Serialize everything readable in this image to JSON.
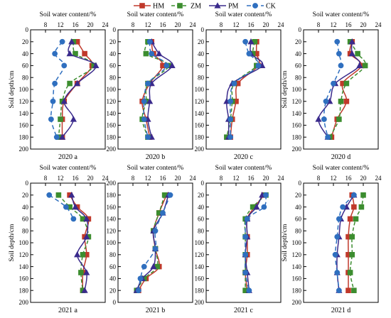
{
  "legend": [
    {
      "name": "HM",
      "color": "#c0392b",
      "marker": "square"
    },
    {
      "name": "ZM",
      "color": "#3c8d2f",
      "marker": "square"
    },
    {
      "name": "PM",
      "color": "#3a2a8c",
      "marker": "triangle"
    },
    {
      "name": "CK",
      "color": "#2f6fbf",
      "marker": "circle"
    }
  ],
  "chart_data": [
    {
      "type": "line",
      "title": "2020 a",
      "xlabel": "Soil water content/%",
      "ylabel": "Soil depth/cm",
      "xlim": [
        4,
        24
      ],
      "ylim": [
        0,
        200
      ],
      "xticks": [
        8,
        12,
        16,
        20,
        24
      ],
      "yticks": [
        0,
        20,
        40,
        60,
        80,
        100,
        120,
        140,
        160,
        180,
        200
      ],
      "y_inverted": true,
      "y": [
        20,
        40,
        60,
        90,
        120,
        150,
        180
      ],
      "series": [
        {
          "name": "HM",
          "values": [
            16.5,
            18.5,
            20.5,
            16.5,
            13.0,
            12.5,
            12.5
          ]
        },
        {
          "name": "ZM",
          "values": [
            15.5,
            16.0,
            21.0,
            14.5,
            12.5,
            12.0,
            11.5
          ]
        },
        {
          "name": "PM",
          "values": [
            15.0,
            14.5,
            21.5,
            16.5,
            13.0,
            15.5,
            12.5
          ]
        },
        {
          "name": "CK",
          "values": [
            12.5,
            10.5,
            13.0,
            10.5,
            10.0,
            9.5,
            11.0
          ]
        }
      ]
    },
    {
      "type": "line",
      "title": "2020 b",
      "xlabel": "Soil water content/%",
      "ylabel": "",
      "xlim": [
        4,
        24
      ],
      "ylim": [
        0,
        200
      ],
      "xticks": [
        8,
        12,
        16,
        20,
        24
      ],
      "yticks": [
        0,
        20,
        40,
        60,
        80,
        100,
        120,
        140,
        160,
        180,
        200
      ],
      "y_inverted": true,
      "y": [
        20,
        40,
        60,
        90,
        120,
        150,
        180
      ],
      "series": [
        {
          "name": "HM",
          "values": [
            13.0,
            13.5,
            16.0,
            12.5,
            10.5,
            11.5,
            12.5
          ]
        },
        {
          "name": "ZM",
          "values": [
            12.0,
            11.5,
            17.5,
            12.0,
            11.5,
            10.5,
            12.0
          ]
        },
        {
          "name": "PM",
          "values": [
            13.0,
            15.0,
            18.5,
            13.0,
            12.5,
            12.0,
            13.0
          ]
        },
        {
          "name": "CK",
          "values": [
            12.5,
            13.0,
            17.0,
            12.0,
            11.0,
            11.0,
            12.0
          ]
        }
      ]
    },
    {
      "type": "line",
      "title": "2020 c",
      "xlabel": "Soil water content/%",
      "ylabel": "",
      "xlim": [
        4,
        24
      ],
      "ylim": [
        0,
        200
      ],
      "xticks": [
        8,
        12,
        16,
        20,
        24
      ],
      "yticks": [
        0,
        20,
        40,
        60,
        80,
        100,
        120,
        140,
        160,
        180,
        200
      ],
      "y_inverted": true,
      "y": [
        20,
        40,
        60,
        90,
        120,
        150,
        180
      ],
      "series": [
        {
          "name": "HM",
          "values": [
            17.5,
            17.5,
            18.0,
            12.5,
            12.0,
            11.0,
            10.5
          ]
        },
        {
          "name": "ZM",
          "values": [
            17.0,
            16.5,
            17.5,
            11.5,
            11.0,
            10.5,
            9.5
          ]
        },
        {
          "name": "PM",
          "values": [
            16.0,
            16.0,
            19.0,
            11.0,
            9.5,
            10.0,
            10.0
          ]
        },
        {
          "name": "CK",
          "values": [
            14.5,
            15.5,
            18.0,
            11.5,
            10.5,
            10.5,
            10.5
          ]
        }
      ]
    },
    {
      "type": "line",
      "title": "2020 d",
      "xlabel": "Soil water content/%",
      "ylabel": "Soil depth/cm",
      "xlim": [
        4,
        24
      ],
      "ylim": [
        0,
        200
      ],
      "xticks": [
        8,
        12,
        16,
        20,
        24
      ],
      "yticks": [
        0,
        20,
        40,
        60,
        80,
        100,
        120,
        140,
        160,
        180,
        200
      ],
      "y_inverted": true,
      "y": [
        20,
        40,
        60,
        90,
        120,
        150,
        180
      ],
      "series": [
        {
          "name": "HM",
          "values": [
            17.0,
            16.5,
            19.5,
            14.5,
            15.5,
            13.0,
            11.5
          ]
        },
        {
          "name": "ZM",
          "values": [
            16.5,
            18.5,
            20.5,
            15.5,
            14.0,
            13.5,
            11.0
          ]
        },
        {
          "name": "PM",
          "values": [
            17.0,
            17.0,
            19.0,
            12.5,
            11.0,
            8.0,
            10.5
          ]
        },
        {
          "name": "CK",
          "values": [
            13.0,
            13.5,
            14.0,
            12.0,
            10.0,
            9.5,
            10.5
          ]
        }
      ]
    },
    {
      "type": "line",
      "title": "2021 a",
      "xlabel": "Soil water content/%",
      "ylabel": "Soil depth/cm",
      "xlim": [
        4,
        24
      ],
      "ylim": [
        0,
        200
      ],
      "xticks": [
        8,
        12,
        16,
        20,
        24
      ],
      "yticks": [
        0,
        20,
        40,
        60,
        80,
        100,
        120,
        140,
        160,
        180,
        200
      ],
      "y_inverted": true,
      "y": [
        20,
        40,
        60,
        90,
        120,
        150,
        180
      ],
      "series": [
        {
          "name": "HM",
          "values": [
            14.5,
            16.5,
            19.5,
            18.5,
            19.0,
            18.0,
            18.0
          ]
        },
        {
          "name": "ZM",
          "values": [
            11.5,
            14.5,
            18.0,
            19.5,
            18.0,
            17.5,
            18.0
          ]
        },
        {
          "name": "PM",
          "values": [
            15.0,
            16.0,
            19.0,
            19.0,
            16.5,
            19.0,
            18.5
          ]
        },
        {
          "name": "CK",
          "values": [
            9.0,
            13.5,
            15.5,
            null,
            null,
            null,
            null
          ]
        }
      ]
    },
    {
      "type": "line",
      "title": "2021 b",
      "xlabel": "Soil water content/%",
      "ylabel": "",
      "xlim": [
        4,
        24
      ],
      "ylim": [
        0,
        200
      ],
      "xticks": [
        8,
        12,
        16,
        20,
        24
      ],
      "yticks": [
        0,
        20,
        40,
        60,
        80,
        100,
        120,
        140,
        160,
        180,
        200
      ],
      "y_inverted": false,
      "y": [
        20,
        40,
        60,
        90,
        120,
        150,
        180
      ],
      "series": [
        {
          "name": "HM",
          "values": [
            9.5,
            11.5,
            15.0,
            14.0,
            13.5,
            15.0,
            17.0
          ]
        },
        {
          "name": "ZM",
          "values": [
            9.0,
            11.0,
            14.5,
            14.0,
            13.5,
            15.0,
            16.5
          ]
        },
        {
          "name": "PM",
          "values": [
            9.0,
            10.5,
            13.5,
            14.0,
            13.5,
            16.0,
            17.5
          ]
        },
        {
          "name": "CK",
          "values": [
            9.5,
            10.0,
            11.0,
            14.0,
            14.0,
            16.0,
            18.0
          ]
        }
      ]
    },
    {
      "type": "line",
      "title": "2021 c",
      "xlabel": "Soil water content/%",
      "ylabel": "",
      "xlim": [
        4,
        24
      ],
      "ylim": [
        0,
        200
      ],
      "xticks": [
        8,
        12,
        16,
        20,
        24
      ],
      "yticks": [
        0,
        20,
        40,
        60,
        80,
        100,
        120,
        140,
        160,
        180,
        200
      ],
      "y_inverted": true,
      "y": [
        20,
        40,
        60,
        90,
        120,
        150,
        180
      ],
      "series": [
        {
          "name": "HM",
          "values": [
            19.5,
            17.0,
            15.0,
            15.0,
            15.0,
            14.5,
            15.0
          ]
        },
        {
          "name": "ZM",
          "values": [
            20.0,
            16.5,
            14.5,
            14.5,
            14.5,
            14.5,
            14.5
          ]
        },
        {
          "name": "PM",
          "values": [
            19.0,
            17.5,
            15.0,
            15.0,
            14.5,
            15.0,
            15.5
          ]
        },
        {
          "name": "CK",
          "values": [
            20.0,
            19.5,
            15.0,
            14.5,
            14.5,
            14.5,
            15.5
          ]
        }
      ]
    },
    {
      "type": "line",
      "title": "2021 d",
      "xlabel": "Soil water content/%",
      "ylabel": "Soil depth/cm",
      "xlim": [
        4,
        24
      ],
      "ylim": [
        0,
        200
      ],
      "xticks": [
        8,
        12,
        16,
        20,
        24
      ],
      "yticks": [
        0,
        20,
        40,
        60,
        80,
        100,
        120,
        140,
        160,
        180,
        200
      ],
      "y_inverted": true,
      "y": [
        20,
        40,
        60,
        90,
        120,
        150,
        180
      ],
      "series": [
        {
          "name": "HM",
          "values": [
            17.0,
            17.5,
            16.5,
            16.0,
            16.0,
            16.0,
            16.0
          ]
        },
        {
          "name": "ZM",
          "values": [
            20.0,
            19.5,
            18.0,
            17.0,
            17.0,
            16.5,
            17.5
          ]
        },
        {
          "name": "PM",
          "values": [
            17.5,
            15.5,
            14.0,
            13.5,
            13.0,
            13.0,
            13.5
          ]
        },
        {
          "name": "CK",
          "values": [
            17.5,
            14.5,
            13.5,
            13.0,
            12.5,
            13.0,
            13.5
          ]
        }
      ]
    }
  ]
}
